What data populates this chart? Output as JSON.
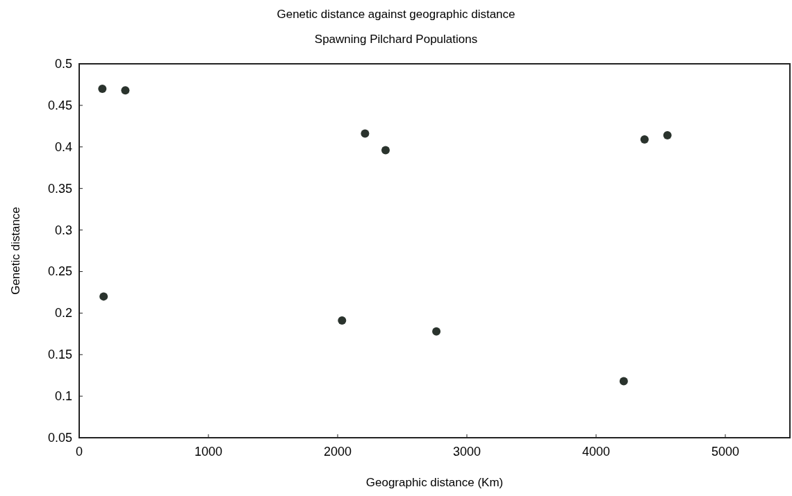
{
  "chart_data": {
    "type": "scatter",
    "title": "Genetic distance against geographic distance",
    "subtitle": "Spawning Pilchard Populations",
    "xlabel": "Geographic distance (Km)",
    "ylabel": "Genetic distance",
    "x": [
      179,
      357,
      189,
      2212,
      2371,
      4375,
      4552,
      2034,
      2764,
      4214
    ],
    "values": [
      0.47,
      0.468,
      0.22,
      0.416,
      0.396,
      0.409,
      0.414,
      0.191,
      0.178,
      0.118
    ],
    "color": "#2a332d",
    "marker": "circle",
    "xlim": [
      0,
      5500
    ],
    "xticks": [
      0,
      1000,
      2000,
      3000,
      4000,
      5000
    ],
    "ylim": [
      0.05,
      0.5
    ],
    "yticks": [
      {
        "value": 0.05,
        "label": "0.05"
      },
      {
        "value": 0.1,
        "label": "0.1"
      },
      {
        "value": 0.15,
        "label": "0.15"
      },
      {
        "value": 0.2,
        "label": "0.2"
      },
      {
        "value": 0.25,
        "label": "0.25"
      },
      {
        "value": 0.3,
        "label": "0.3"
      },
      {
        "value": 0.35,
        "label": "0.35"
      },
      {
        "value": 0.4,
        "label": "0.4"
      },
      {
        "value": 0.45,
        "label": "0.45"
      },
      {
        "value": 0.5,
        "label": "0.5"
      }
    ],
    "grid": false
  }
}
